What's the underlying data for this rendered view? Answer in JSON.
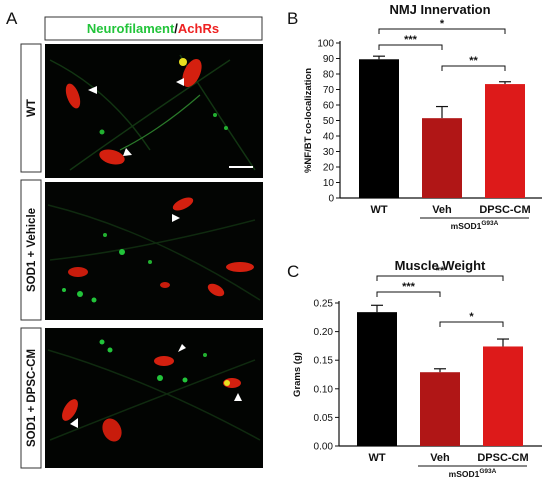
{
  "panel_a": {
    "letter": "A",
    "legend": {
      "part1": "Neurofilament",
      "sep": "/",
      "part2": "AchRs",
      "color1": "#22c43a",
      "color2": "#ee2222"
    },
    "rows": [
      {
        "label": "WT"
      },
      {
        "label": "SOD1 + Vehicle"
      },
      {
        "label": "SOD1 + DPSC-CM"
      }
    ]
  },
  "colors": {
    "wt": "#000000",
    "veh": "#b01616",
    "dpsc": "#dd1a1a"
  },
  "chart_data": [
    {
      "panel": "B",
      "type": "bar",
      "title": "NMJ Innervation",
      "ylabel": "%NF/BT co-localization",
      "categories": [
        "WT",
        "Veh",
        "DPSC-CM"
      ],
      "values": [
        89.5,
        51.5,
        73.5
      ],
      "errors": [
        2.0,
        7.5,
        1.5
      ],
      "ylim": [
        0,
        100
      ],
      "yticks": [
        "0",
        "10",
        "20",
        "30",
        "40",
        "50",
        "60",
        "70",
        "80",
        "90",
        "100"
      ],
      "group_label": {
        "base": "mSOD1",
        "sup": "G93A"
      },
      "significance": [
        {
          "from": 0,
          "to": 1,
          "label": "***"
        },
        {
          "from": 0,
          "to": 2,
          "label": "*"
        },
        {
          "from": 1,
          "to": 2,
          "label": "**"
        }
      ]
    },
    {
      "panel": "C",
      "type": "bar",
      "title": "Muscle Weight",
      "ylabel": "Grams (g)",
      "categories": [
        "WT",
        "Veh",
        "DPSC-CM"
      ],
      "values": [
        0.234,
        0.129,
        0.174
      ],
      "errors": [
        0.012,
        0.006,
        0.013
      ],
      "ylim": [
        0,
        0.25
      ],
      "yticks": [
        "0.00",
        "0.05",
        "0.10",
        "0.15",
        "0.20",
        "0.25"
      ],
      "group_label": {
        "base": "mSOD1",
        "sup": "G93A"
      },
      "significance": [
        {
          "from": 0,
          "to": 1,
          "label": "***"
        },
        {
          "from": 0,
          "to": 2,
          "label": "**"
        },
        {
          "from": 1,
          "to": 2,
          "label": "*"
        }
      ]
    }
  ]
}
